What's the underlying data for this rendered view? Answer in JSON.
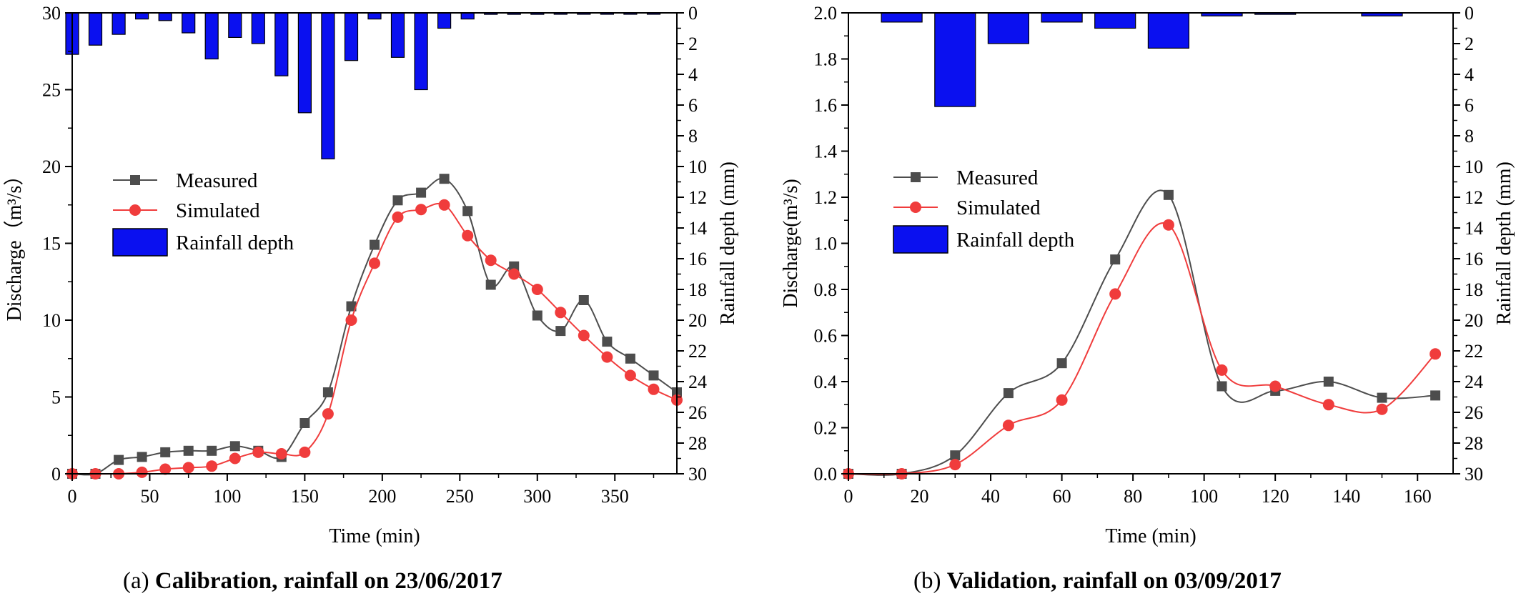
{
  "colors": {
    "measured": "#4d4d4d",
    "simulated": "#f03c3c",
    "rainfall": "#0a10f0",
    "axis": "#000000"
  },
  "captions": {
    "a_prefix": "(a) ",
    "a_text": "Calibration, rainfall on 23/06/2017",
    "b_prefix": "(b) ",
    "b_text": "Validation, rainfall on 03/09/2017"
  },
  "chart_data": [
    {
      "type": "line",
      "xlabel": "Time (min)",
      "ylabel": "Discharge（m³/s）",
      "y2label": "Rainfall depth (mm)",
      "xlim": [
        0,
        390
      ],
      "ylim": [
        0,
        30
      ],
      "y2lim": [
        0,
        30
      ],
      "y2_inverted": true,
      "xticks": [
        "0",
        "50",
        "100",
        "150",
        "200",
        "250",
        "300",
        "350"
      ],
      "yticks": [
        "0",
        "5",
        "10",
        "15",
        "20",
        "25",
        "30"
      ],
      "y2ticks": [
        "0",
        "2",
        "4",
        "6",
        "8",
        "10",
        "12",
        "14",
        "16",
        "18",
        "20",
        "22",
        "24",
        "26",
        "28",
        "30"
      ],
      "legend": [
        "Measured",
        "Simulated",
        "Rainfall depth"
      ],
      "legend_placement": "center-left",
      "series": [
        {
          "name": "Measured",
          "x": [
            0,
            15,
            30,
            45,
            60,
            75,
            90,
            105,
            120,
            135,
            150,
            165,
            180,
            195,
            210,
            225,
            240,
            255,
            270,
            285,
            300,
            315,
            330,
            345,
            360,
            375,
            390
          ],
          "y": [
            0,
            0,
            0.9,
            1.1,
            1.4,
            1.5,
            1.5,
            1.8,
            1.5,
            1.1,
            3.3,
            5.3,
            10.9,
            14.9,
            17.8,
            18.3,
            19.2,
            17.1,
            12.3,
            13.5,
            10.3,
            9.3,
            11.3,
            8.6,
            7.5,
            6.4,
            5.3
          ]
        },
        {
          "name": "Simulated",
          "x": [
            0,
            15,
            30,
            45,
            60,
            75,
            90,
            105,
            120,
            135,
            150,
            165,
            180,
            195,
            210,
            225,
            240,
            255,
            270,
            285,
            300,
            315,
            330,
            345,
            360,
            375,
            390
          ],
          "y": [
            0,
            0,
            0,
            0.1,
            0.3,
            0.4,
            0.5,
            1.0,
            1.4,
            1.3,
            1.4,
            3.9,
            10.0,
            13.7,
            16.7,
            17.2,
            17.5,
            15.5,
            13.9,
            13.0,
            12.0,
            10.5,
            9.0,
            7.6,
            6.4,
            5.5,
            4.8
          ]
        },
        {
          "name": "Rainfall depth",
          "axis": "y2",
          "x": [
            0,
            15,
            30,
            45,
            60,
            75,
            90,
            105,
            120,
            135,
            150,
            165,
            180,
            195,
            210,
            225,
            240,
            255,
            270,
            285,
            300,
            315,
            330,
            345,
            360,
            375
          ],
          "values": [
            2.7,
            2.1,
            1.4,
            0.4,
            0.5,
            1.3,
            3.0,
            1.6,
            2.0,
            4.1,
            6.5,
            9.5,
            3.1,
            0.4,
            2.9,
            5.0,
            1.0,
            0.4,
            0.1,
            0.1,
            0.1,
            0.05,
            0.05,
            0.05,
            0.05,
            0.05
          ]
        }
      ]
    },
    {
      "type": "line",
      "xlabel": "Time (min)",
      "ylabel": "Discharge(m³/s)",
      "y2label": "Rainfall depth (mm)",
      "xlim": [
        0,
        170
      ],
      "ylim": [
        0,
        2.0
      ],
      "y2lim": [
        0,
        30
      ],
      "y2_inverted": true,
      "xticks": [
        "0",
        "20",
        "40",
        "60",
        "80",
        "100",
        "120",
        "140",
        "160"
      ],
      "yticks": [
        "0.0",
        "0.2",
        "0.4",
        "0.6",
        "0.8",
        "1.0",
        "1.2",
        "1.4",
        "1.6",
        "1.8",
        "2.0"
      ],
      "y2ticks": [
        "0",
        "2",
        "4",
        "6",
        "8",
        "10",
        "12",
        "14",
        "16",
        "18",
        "20",
        "22",
        "24",
        "26",
        "28",
        "30"
      ],
      "legend": [
        "Measured",
        "Simulated",
        "Rainfall depth"
      ],
      "legend_placement": "center-left",
      "series": [
        {
          "name": "Measured",
          "x": [
            0,
            15,
            30,
            45,
            60,
            75,
            90,
            105,
            120,
            135,
            150,
            165
          ],
          "y": [
            0,
            0,
            0.08,
            0.35,
            0.48,
            0.93,
            1.21,
            0.38,
            0.36,
            0.4,
            0.33,
            0.34
          ]
        },
        {
          "name": "Simulated",
          "x": [
            0,
            15,
            30,
            45,
            60,
            75,
            90,
            105,
            120,
            135,
            150,
            165
          ],
          "y": [
            0,
            0,
            0.04,
            0.21,
            0.32,
            0.78,
            1.08,
            0.45,
            0.38,
            0.3,
            0.28,
            0.52
          ]
        },
        {
          "name": "Rainfall depth",
          "axis": "y2",
          "x": [
            0,
            15,
            30,
            45,
            60,
            75,
            90,
            105,
            120,
            135,
            150,
            165
          ],
          "values": [
            0,
            0.6,
            6.1,
            2.0,
            0.6,
            1.0,
            2.3,
            0.2,
            0.1,
            0,
            0.2,
            0
          ]
        }
      ]
    }
  ]
}
